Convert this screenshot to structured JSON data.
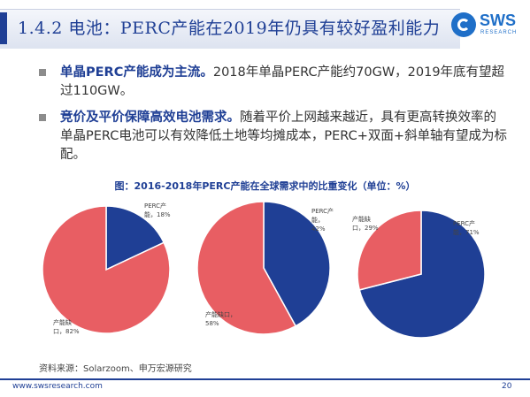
{
  "header": {
    "title": "1.4.2 电池：PERC产能在2019年仍具有较好盈利能力",
    "logo_text": "SWS",
    "logo_sub": "RESEARCH"
  },
  "bullets": [
    {
      "bold": "单晶PERC产能成为主流。",
      "text": "2018年单晶PERC产能约70GW，2019年底有望超过110GW。"
    },
    {
      "bold": "竞价及平价保障高效电池需求。",
      "text": "随着平价上网越来越近，具有更高转换效率的单晶PERC电池可以有效降低土地等均摊成本，PERC+双面+斜单轴有望成为标配。"
    }
  ],
  "chart_title": "图：2016-2018年PERC产能在全球需求中的比重变化（单位：%）",
  "chart_data": [
    {
      "type": "pie",
      "slices": [
        {
          "name": "PERC产能",
          "value": 18,
          "color": "#1f3f95"
        },
        {
          "name": "产能缺口",
          "value": 82,
          "color": "#e85e63"
        }
      ],
      "labels": {
        "perc_line1": "PERC产",
        "perc_line2": "能，18%",
        "gap_line1": "产能缺",
        "gap_line2": "口，82%"
      }
    },
    {
      "type": "pie",
      "slices": [
        {
          "name": "PERC产能",
          "value": 42,
          "color": "#1f3f95"
        },
        {
          "name": "产能缺口",
          "value": 58,
          "color": "#e85e63"
        }
      ],
      "labels": {
        "perc_line1": "PERC产",
        "perc_line2": "能，",
        "perc_line3": "42%",
        "gap_line1": "产能缺口，",
        "gap_line2": "58%"
      }
    },
    {
      "type": "pie",
      "slices": [
        {
          "name": "PERC产能",
          "value": 71,
          "color": "#1f3f95"
        },
        {
          "name": "产能缺口",
          "value": 29,
          "color": "#e85e63"
        }
      ],
      "labels": {
        "gap_line1": "产能缺",
        "gap_line2": "口，29%",
        "perc_line1": "PERC产",
        "perc_line2": "能，71%"
      }
    }
  ],
  "source": "资料来源：Solarzoom、申万宏源研究",
  "footer": {
    "url": "www.swsresearch.com",
    "page": "20"
  }
}
